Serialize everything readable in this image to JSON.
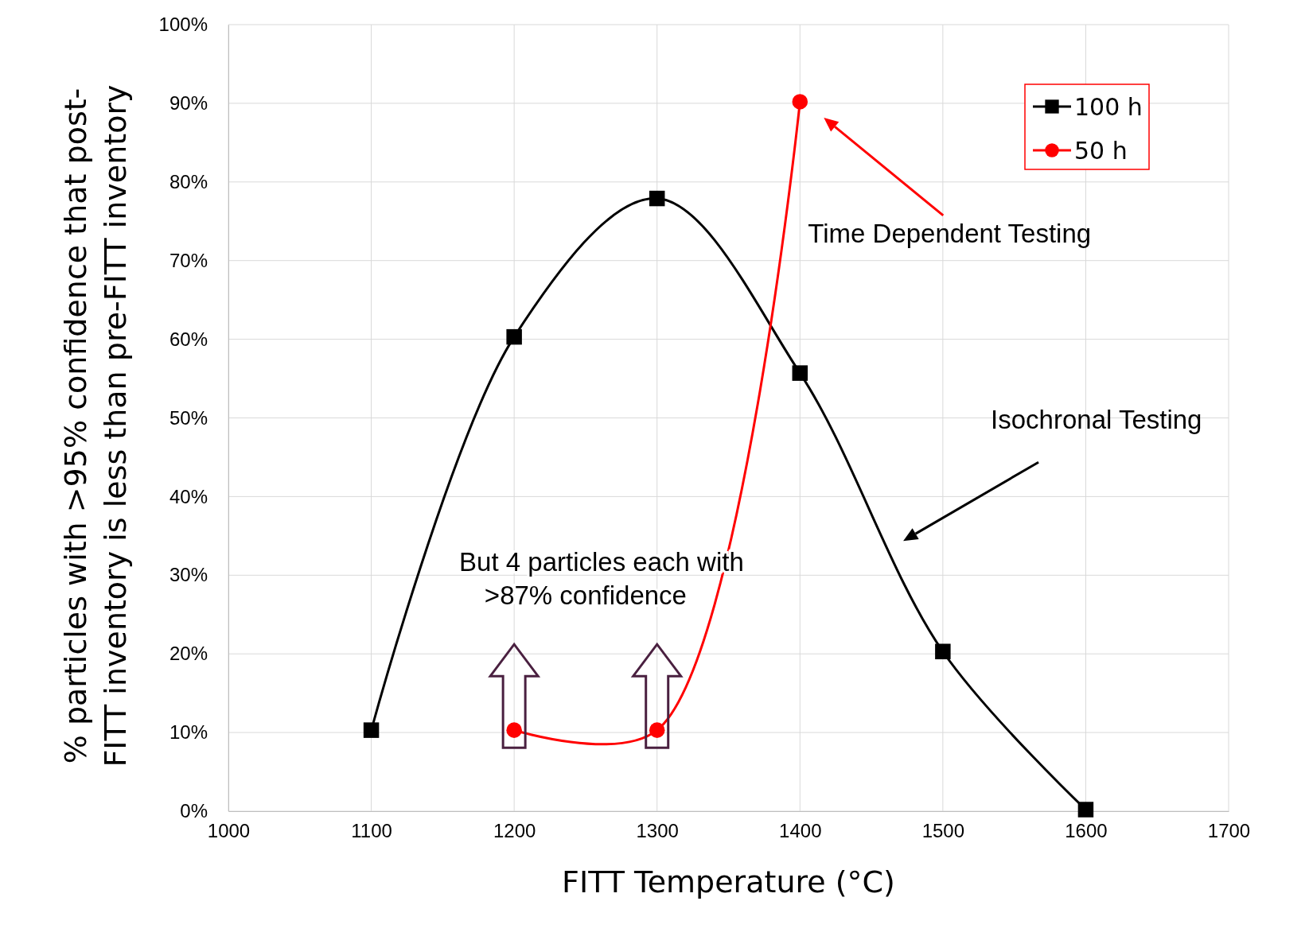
{
  "chart_data": {
    "type": "line",
    "xlabel": "FITT Temperature (°C)",
    "ylabel": "% particles with >95% confidence that post-FITT inventory is less than pre-FITT inventory",
    "xlim": [
      1000,
      1700
    ],
    "xticks": [
      1000,
      1100,
      1200,
      1300,
      1400,
      1500,
      1600,
      1700
    ],
    "ylim": [
      0,
      100
    ],
    "yticks": [
      {
        "value": 0,
        "label": "0%"
      },
      {
        "value": 10,
        "label": "10%"
      },
      {
        "value": 20,
        "label": "20%"
      },
      {
        "value": 30,
        "label": "30%"
      },
      {
        "value": 40,
        "label": "40%"
      },
      {
        "value": 50,
        "label": "50%"
      },
      {
        "value": 60,
        "label": "60%"
      },
      {
        "value": 70,
        "label": "70%"
      },
      {
        "value": 80,
        "label": "80%"
      },
      {
        "value": 90,
        "label": "90%"
      },
      {
        "value": 100,
        "label": "100%"
      }
    ],
    "grid": true,
    "legend": "top right",
    "series": [
      {
        "name": "100 h",
        "color": "#000000",
        "marker": "square",
        "x": [
          1100,
          1200,
          1300,
          1400,
          1500,
          1600
        ],
        "values": [
          10.3,
          60.3,
          77.9,
          55.7,
          20.3,
          0.2
        ]
      },
      {
        "name": "50 h",
        "color": "#ff0000",
        "marker": "circle",
        "x": [
          1200,
          1300,
          1400
        ],
        "values": [
          10.3,
          10.3,
          90.2
        ]
      }
    ],
    "annotations": [
      "Time Dependent Testing",
      "Isochronal Testing",
      "But 4 particles each with >87% confidence"
    ]
  }
}
